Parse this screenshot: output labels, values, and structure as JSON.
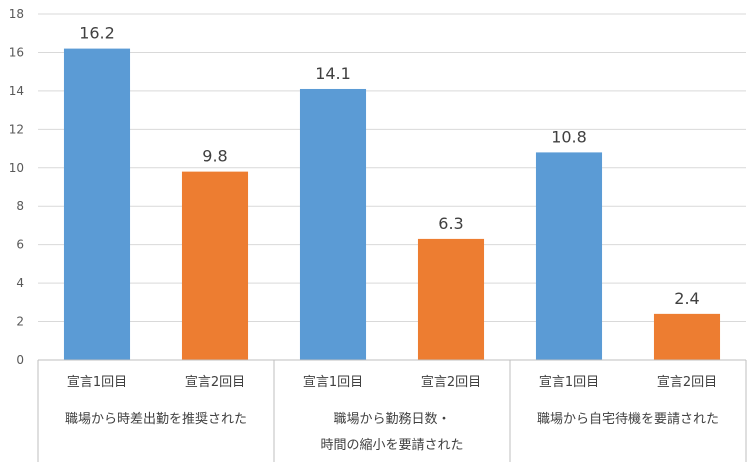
{
  "chart_data": {
    "type": "bar",
    "title": "",
    "xlabel": "",
    "ylabel": "",
    "ylim": [
      0,
      18
    ],
    "ytick_step": 2,
    "grid": true,
    "groups": [
      {
        "label_lines": [
          "職場から時差出勤を推奨された"
        ]
      },
      {
        "label_lines": [
          "職場から勤務日数・",
          "時間の縮小を要請された"
        ]
      },
      {
        "label_lines": [
          "職場から自宅待機を要請された"
        ]
      }
    ],
    "categories": [
      "宣言1回目",
      "宣言2回目",
      "宣言1回目",
      "宣言2回目",
      "宣言1回目",
      "宣言2回目"
    ],
    "values": [
      16.2,
      9.8,
      14.1,
      6.3,
      10.8,
      2.4
    ],
    "bar_colors": [
      "#5b9bd5",
      "#ed7d31",
      "#5b9bd5",
      "#ed7d31",
      "#5b9bd5",
      "#ed7d31"
    ],
    "colors": {
      "grid": "#d9d9d9",
      "axis": "#bfbfbf"
    }
  }
}
